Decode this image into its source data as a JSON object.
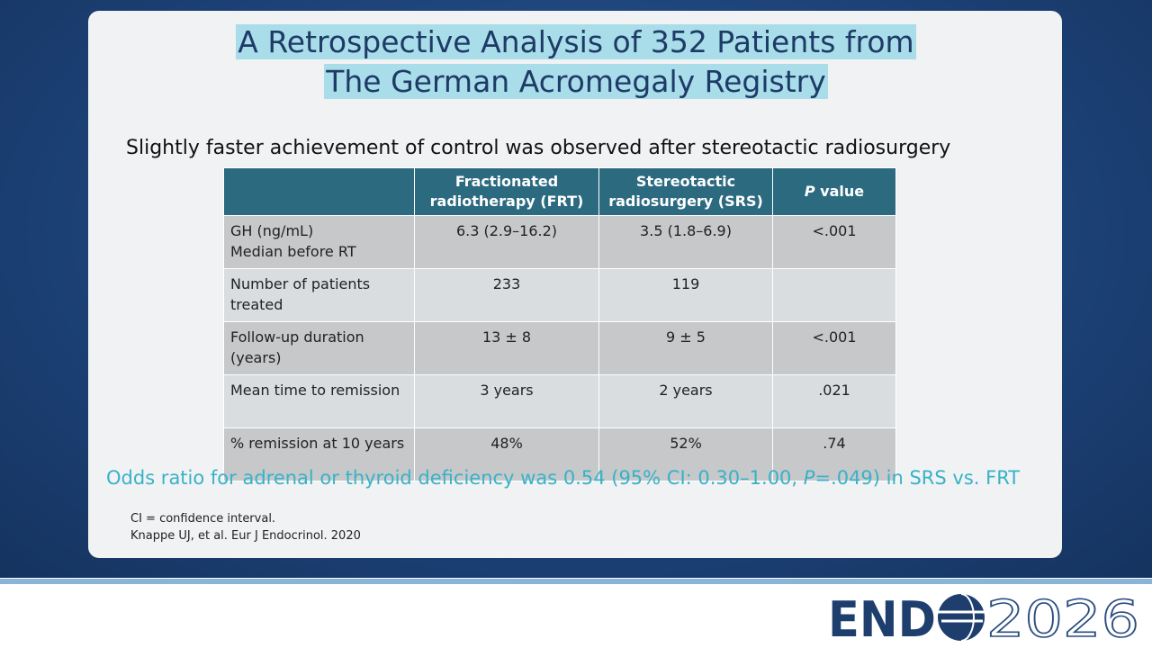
{
  "slide": {
    "title": [
      "A Retrospective Analysis of 352 Patients from",
      "The German Acromegaly Registry"
    ],
    "subtitle": "Slightly faster achievement of control was observed after stereotactic radiosurgery",
    "table": {
      "header": [
        "",
        "Fractionated radiotherapy (FRT)",
        "Stereotactic radiosurgery (SRS)",
        [
          "P",
          " value"
        ]
      ],
      "rows": [
        [
          "GH (ng/mL)\nMedian before RT",
          "6.3 (2.9–16.2)",
          "3.5 (1.8–6.9)",
          "<.001"
        ],
        [
          "Number of patients treated",
          "233",
          "119",
          ""
        ],
        [
          "Follow-up duration (years)",
          "13 ± 8",
          "9 ± 5",
          "<.001"
        ],
        [
          "Mean time to remission",
          "3 years",
          "2 years",
          ".021"
        ],
        [
          "% remission at 10 years",
          "48%",
          "52%",
          ".74"
        ]
      ]
    },
    "finding": [
      "Odds ratio for adrenal or thyroid deficiency was 0.54 (95% CI: 0.30–1.00, ",
      "P",
      "=.049) in SRS vs. FRT"
    ],
    "footnotes": [
      "CI = confidence interval.",
      "Knappe UJ, et al. Eur J Endocrinol. 2020"
    ],
    "logo": [
      "END",
      "2026"
    ]
  }
}
